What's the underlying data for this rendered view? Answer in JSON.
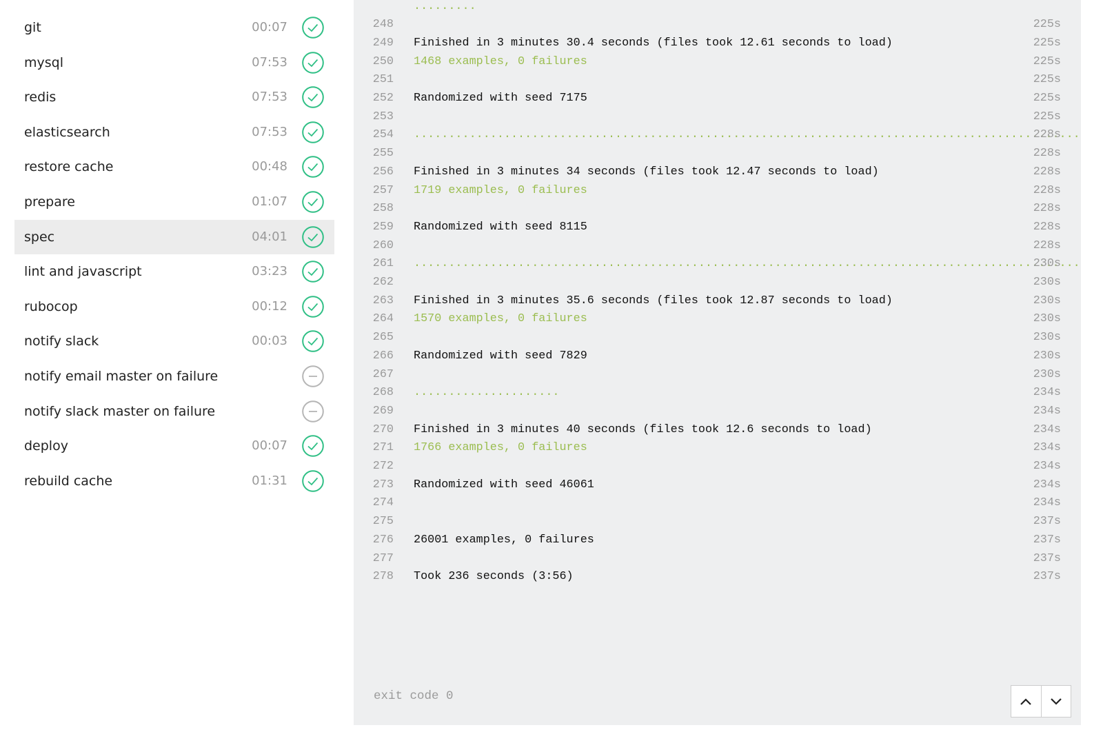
{
  "steps": [
    {
      "name": "git",
      "duration": "00:07",
      "status": "success"
    },
    {
      "name": "mysql",
      "duration": "07:53",
      "status": "success"
    },
    {
      "name": "redis",
      "duration": "07:53",
      "status": "success"
    },
    {
      "name": "elasticsearch",
      "duration": "07:53",
      "status": "success"
    },
    {
      "name": "restore cache",
      "duration": "00:48",
      "status": "success"
    },
    {
      "name": "prepare",
      "duration": "01:07",
      "status": "success"
    },
    {
      "name": "spec",
      "duration": "04:01",
      "status": "success",
      "selected": true
    },
    {
      "name": "lint and javascript",
      "duration": "03:23",
      "status": "success"
    },
    {
      "name": "rubocop",
      "duration": "00:12",
      "status": "success"
    },
    {
      "name": "notify slack",
      "duration": "00:03",
      "status": "success"
    },
    {
      "name": "notify email master on failure",
      "status": "skipped"
    },
    {
      "name": "notify slack master on failure",
      "status": "skipped"
    },
    {
      "name": "deploy",
      "duration": "00:07",
      "status": "success"
    },
    {
      "name": "rebuild cache",
      "duration": "01:31",
      "status": "success"
    }
  ],
  "log": {
    "lines": [
      {
        "text": ".........",
        "style": "green"
      },
      {
        "number": 248,
        "time": "225s"
      },
      {
        "number": 249,
        "text": "Finished in 3 minutes 30.4 seconds (files took 12.61 seconds to load)",
        "time": "225s"
      },
      {
        "number": 250,
        "text": "1468 examples, 0 failures",
        "style": "green",
        "time": "225s"
      },
      {
        "number": 251,
        "time": "225s"
      },
      {
        "number": 252,
        "text": "Randomized with seed 7175",
        "time": "225s"
      },
      {
        "number": 253,
        "time": "225s"
      },
      {
        "number": 254,
        "text": "......................................................................................................................................................................................................................................................................................................................................................................................................................",
        "style": "green",
        "time": "228s"
      },
      {
        "number": 255,
        "time": "228s"
      },
      {
        "number": 256,
        "text": "Finished in 3 minutes 34 seconds (files took 12.47 seconds to load)",
        "time": "228s"
      },
      {
        "number": 257,
        "text": "1719 examples, 0 failures",
        "style": "green",
        "time": "228s"
      },
      {
        "number": 258,
        "time": "228s"
      },
      {
        "number": 259,
        "text": "Randomized with seed 8115",
        "time": "228s"
      },
      {
        "number": 260,
        "time": "228s"
      },
      {
        "number": 261,
        "text": "........................................................................................................................................",
        "style": "green",
        "time": "230s"
      },
      {
        "number": 262,
        "time": "230s"
      },
      {
        "number": 263,
        "text": "Finished in 3 minutes 35.6 seconds (files took 12.87 seconds to load)",
        "time": "230s"
      },
      {
        "number": 264,
        "text": "1570 examples, 0 failures",
        "style": "green",
        "time": "230s"
      },
      {
        "number": 265,
        "time": "230s"
      },
      {
        "number": 266,
        "text": "Randomized with seed 7829",
        "time": "230s"
      },
      {
        "number": 267,
        "time": "230s"
      },
      {
        "number": 268,
        "text": ".....................",
        "style": "green",
        "time": "234s"
      },
      {
        "number": 269,
        "time": "234s"
      },
      {
        "number": 270,
        "text": "Finished in 3 minutes 40 seconds (files took 12.6 seconds to load)",
        "time": "234s"
      },
      {
        "number": 271,
        "text": "1766 examples, 0 failures",
        "style": "green",
        "time": "234s"
      },
      {
        "number": 272,
        "time": "234s"
      },
      {
        "number": 273,
        "text": "Randomized with seed 46061",
        "time": "234s"
      },
      {
        "number": 274,
        "time": "234s"
      },
      {
        "number": 275,
        "time": "237s"
      },
      {
        "number": 276,
        "text": "26001 examples, 0 failures",
        "time": "237s"
      },
      {
        "number": 277,
        "time": "237s"
      },
      {
        "number": 278,
        "text": "Took 236 seconds (3:56)",
        "time": "237s"
      }
    ],
    "exit": "exit code 0"
  }
}
